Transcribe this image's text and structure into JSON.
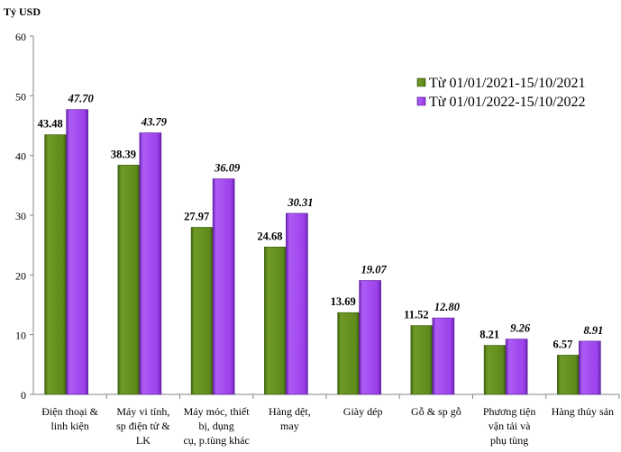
{
  "chart_data": {
    "type": "bar",
    "ylabel": "Tỷ USD",
    "ylim": [
      0,
      60
    ],
    "yticks": [
      0,
      10,
      20,
      30,
      40,
      50,
      60
    ],
    "categories": [
      [
        "Điện thoại &",
        "linh kiện"
      ],
      [
        "Máy vi tính,",
        "sp điện tử &",
        "LK"
      ],
      [
        "Máy móc, thiết",
        "bị, dụng",
        "cụ, p.tùng khác"
      ],
      [
        "Hàng dệt,",
        "may"
      ],
      [
        "Giày dép"
      ],
      [
        "Gỗ & sp  gỗ"
      ],
      [
        "Phương tiện",
        "vận tải và",
        "phụ tùng"
      ],
      [
        "Hàng thủy sản"
      ]
    ],
    "series": [
      {
        "name": "Từ 01/01/2021-15/10/2021",
        "color": "#5e8a1c",
        "label_style": "bold",
        "values": [
          43.48,
          38.39,
          27.97,
          24.68,
          13.69,
          11.52,
          8.21,
          6.57
        ],
        "labels": [
          "43.48",
          "38.39",
          "27.97",
          "24.68",
          "13.69",
          "11.52",
          "8.21",
          "6.57"
        ]
      },
      {
        "name": "Từ 01/01/2022-15/10/2022",
        "color": "#9b3fea",
        "label_style": "bold-italic",
        "values": [
          47.7,
          43.79,
          36.09,
          30.31,
          19.07,
          12.8,
          9.26,
          8.91
        ],
        "labels": [
          "47.70",
          "43.79",
          "36.09",
          "30.31",
          "19.07",
          "12.80",
          "9.26",
          "8.91"
        ]
      }
    ],
    "legend": "right",
    "grid": false
  }
}
